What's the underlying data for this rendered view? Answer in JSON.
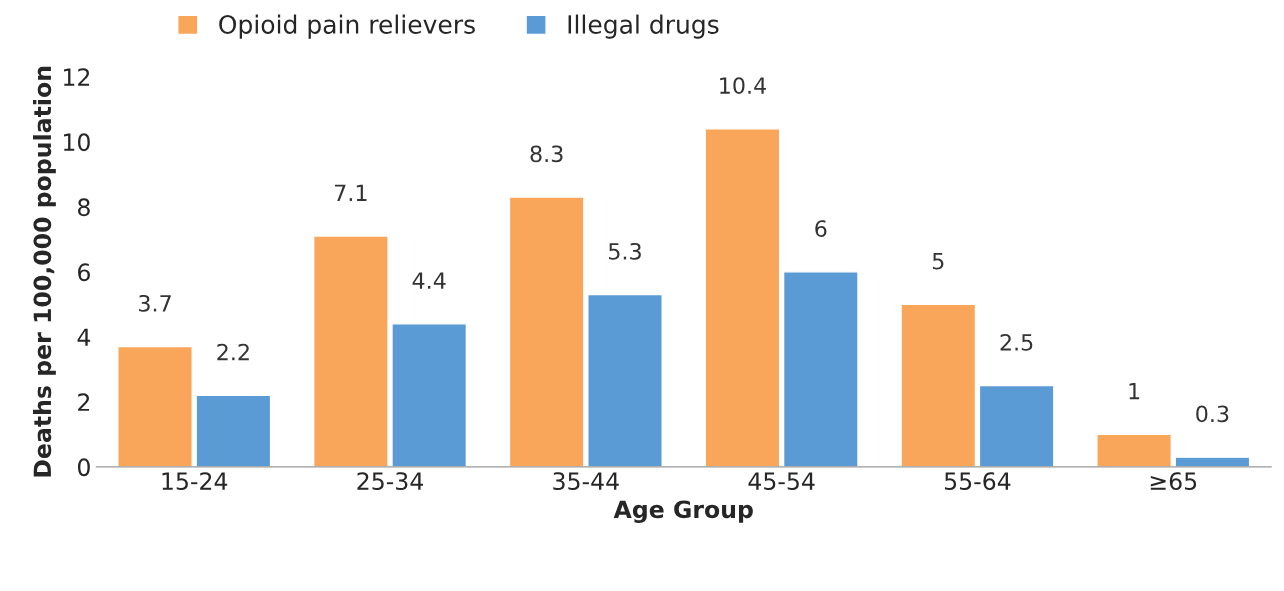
{
  "chart_data": {
    "type": "bar",
    "xlabel": "Age Group",
    "ylabel": "Deaths per 100,000 population",
    "categories": [
      "15-24",
      "25-34",
      "35-44",
      "45-54",
      "55-64",
      "≥65"
    ],
    "series": [
      {
        "name": "Opioid pain relievers",
        "color": "#f9a65a",
        "values": [
          3.7,
          7.1,
          8.3,
          10.4,
          5,
          1
        ]
      },
      {
        "name": "Illegal drugs",
        "color": "#5b9bd5",
        "values": [
          2.2,
          4.4,
          5.3,
          6,
          2.5,
          0.3
        ]
      }
    ],
    "ylim": [
      0,
      12
    ],
    "yticks": [
      0,
      2,
      4,
      6,
      8,
      10,
      12
    ],
    "grid": false,
    "legend": "top",
    "data_labels": true
  }
}
